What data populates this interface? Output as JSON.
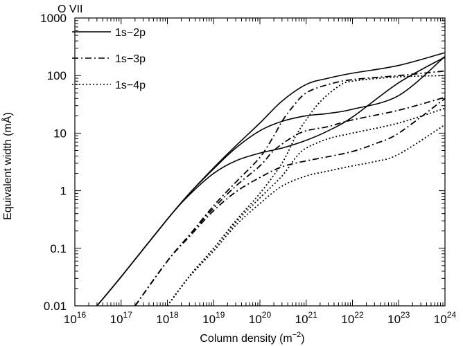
{
  "chart_data": {
    "type": "line",
    "title": "O VII",
    "xlabel": "Column density (m",
    "xlabel_exponent": "−2",
    "xlabel_close": ")",
    "ylabel": "Equivalent width (mÅ)",
    "xscale": "log",
    "yscale": "log",
    "xlim": [
      1e+16,
      1e+24
    ],
    "ylim": [
      0.01,
      1000
    ],
    "x_tick_labels": [
      {
        "base": "10",
        "exp": "16"
      },
      {
        "base": "10",
        "exp": "17"
      },
      {
        "base": "10",
        "exp": "18"
      },
      {
        "base": "10",
        "exp": "19"
      },
      {
        "base": "10",
        "exp": "20"
      },
      {
        "base": "10",
        "exp": "21"
      },
      {
        "base": "10",
        "exp": "22"
      },
      {
        "base": "10",
        "exp": "23"
      },
      {
        "base": "10",
        "exp": "24"
      }
    ],
    "y_tick_labels": [
      "0.01",
      "0.1",
      "1",
      "10",
      "100",
      "1000"
    ],
    "legend": [
      {
        "label": "1s−2p",
        "style": "solid"
      },
      {
        "label": "1s−3p",
        "style": "dash-dot"
      },
      {
        "label": "1s−4p",
        "style": "dotted"
      }
    ],
    "legend_position": "top-left",
    "grid": false,
    "series": [
      {
        "transition": "1s-2p",
        "style": "solid",
        "points": [
          [
            3e+16,
            0.01
          ],
          [
            1e+17,
            0.032
          ],
          [
            1e+18,
            0.32
          ],
          [
            3e+18,
            0.9
          ],
          [
            1e+19,
            2.5
          ],
          [
            3e+19,
            6
          ],
          [
            1e+20,
            15
          ],
          [
            3e+20,
            36
          ],
          [
            1e+21,
            70
          ],
          [
            3e+21,
            90
          ],
          [
            1e+22,
            110
          ],
          [
            1e+23,
            150
          ],
          [
            1e+24,
            250
          ]
        ]
      },
      {
        "transition": "1s-2p",
        "style": "solid",
        "points": [
          [
            3e+16,
            0.01
          ],
          [
            1e+17,
            0.032
          ],
          [
            1e+18,
            0.32
          ],
          [
            3e+18,
            0.9
          ],
          [
            1e+19,
            2.4
          ],
          [
            3e+19,
            5.5
          ],
          [
            1e+20,
            11
          ],
          [
            3e+20,
            16
          ],
          [
            1e+21,
            20
          ],
          [
            3e+21,
            22
          ],
          [
            1e+22,
            26
          ],
          [
            1e+23,
            45
          ],
          [
            1e+24,
            215
          ]
        ]
      },
      {
        "transition": "1s-2p",
        "style": "solid",
        "points": [
          [
            3e+16,
            0.01
          ],
          [
            1e+17,
            0.032
          ],
          [
            1e+18,
            0.32
          ],
          [
            3e+18,
            0.85
          ],
          [
            1e+19,
            2.0
          ],
          [
            3e+19,
            3.3
          ],
          [
            1e+20,
            4.5
          ],
          [
            3e+20,
            5.5
          ],
          [
            1e+21,
            7.5
          ],
          [
            3e+21,
            11
          ],
          [
            1e+22,
            19
          ],
          [
            1e+23,
            75
          ],
          [
            1e+24,
            210
          ]
        ]
      },
      {
        "transition": "1s-3p",
        "style": "dash-dot",
        "points": [
          [
            2e+17,
            0.01
          ],
          [
            1e+18,
            0.06
          ],
          [
            3e+18,
            0.17
          ],
          [
            1e+19,
            0.55
          ],
          [
            3e+19,
            1.4
          ],
          [
            1e+20,
            3.8
          ],
          [
            2e+20,
            9
          ],
          [
            3e+20,
            16
          ],
          [
            5e+20,
            28
          ],
          [
            1e+21,
            50
          ],
          [
            3e+21,
            70
          ],
          [
            1e+22,
            85
          ],
          [
            1e+23,
            100
          ],
          [
            1e+24,
            120
          ]
        ]
      },
      {
        "transition": "1s-3p",
        "style": "dash-dot",
        "points": [
          [
            2e+17,
            0.01
          ],
          [
            1e+18,
            0.06
          ],
          [
            3e+18,
            0.17
          ],
          [
            1e+19,
            0.5
          ],
          [
            3e+19,
            1.2
          ],
          [
            1e+20,
            2.7
          ],
          [
            2e+20,
            5
          ],
          [
            5e+20,
            8.5
          ],
          [
            1e+21,
            11
          ],
          [
            3e+21,
            13
          ],
          [
            1e+22,
            17
          ],
          [
            1e+23,
            25
          ],
          [
            1e+24,
            42
          ]
        ]
      },
      {
        "transition": "1s-3p",
        "style": "dash-dot",
        "points": [
          [
            2e+17,
            0.01
          ],
          [
            1e+18,
            0.06
          ],
          [
            3e+18,
            0.16
          ],
          [
            1e+19,
            0.45
          ],
          [
            3e+19,
            0.95
          ],
          [
            1e+20,
            1.7
          ],
          [
            3e+20,
            2.6
          ],
          [
            1e+21,
            3.3
          ],
          [
            3e+21,
            3.9
          ],
          [
            1e+22,
            4.8
          ],
          [
            3e+22,
            6.5
          ],
          [
            1e+23,
            10
          ],
          [
            1e+24,
            40
          ]
        ]
      },
      {
        "transition": "1s-4p",
        "style": "dotted",
        "points": [
          [
            1e+18,
            0.01
          ],
          [
            3e+18,
            0.033
          ],
          [
            1e+19,
            0.1
          ],
          [
            3e+19,
            0.3
          ],
          [
            1e+20,
            0.9
          ],
          [
            3e+20,
            3
          ],
          [
            6e+20,
            9
          ],
          [
            1e+21,
            17
          ],
          [
            2e+21,
            35
          ],
          [
            5e+21,
            65
          ],
          [
            1e+22,
            80
          ],
          [
            1e+23,
            95
          ],
          [
            1e+24,
            100
          ]
        ]
      },
      {
        "transition": "1s-4p",
        "style": "dotted",
        "points": [
          [
            1e+18,
            0.01
          ],
          [
            3e+18,
            0.033
          ],
          [
            1e+19,
            0.1
          ],
          [
            3e+19,
            0.28
          ],
          [
            1e+20,
            0.75
          ],
          [
            3e+20,
            1.8
          ],
          [
            6e+20,
            3.8
          ],
          [
            1e+21,
            5.5
          ],
          [
            3e+21,
            8
          ],
          [
            1e+22,
            10
          ],
          [
            1e+23,
            15
          ],
          [
            1e+24,
            27
          ]
        ]
      },
      {
        "transition": "1s-4p",
        "style": "dotted",
        "points": [
          [
            1e+18,
            0.01
          ],
          [
            3e+18,
            0.032
          ],
          [
            1e+19,
            0.09
          ],
          [
            3e+19,
            0.25
          ],
          [
            1e+20,
            0.6
          ],
          [
            3e+20,
            1.2
          ],
          [
            1e+21,
            1.8
          ],
          [
            3e+21,
            2.2
          ],
          [
            1e+22,
            2.7
          ],
          [
            3e+22,
            3.2
          ],
          [
            1e+23,
            4.3
          ],
          [
            1e+24,
            14
          ]
        ]
      }
    ]
  }
}
